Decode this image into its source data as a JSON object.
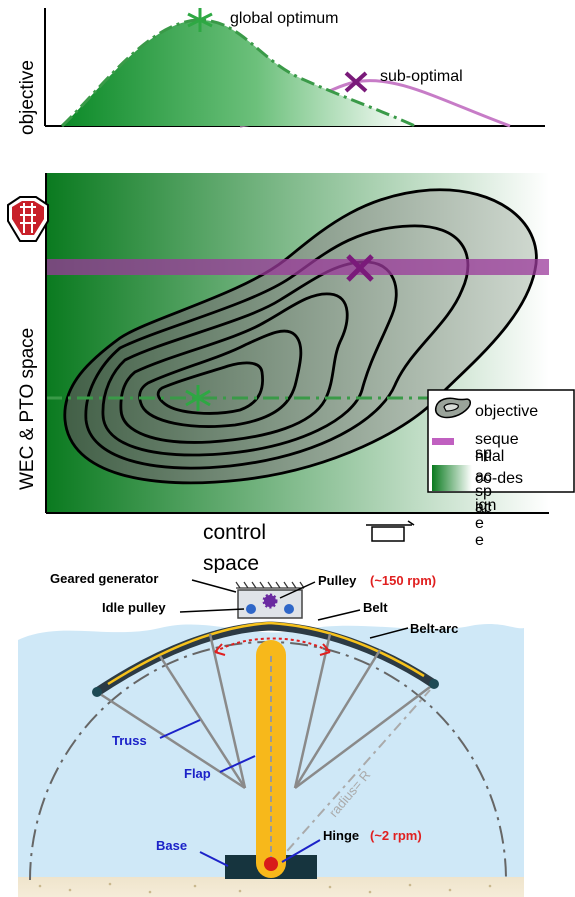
{
  "top_plot": {
    "ylabel": "objective",
    "global_label": "global optimum",
    "sub_label": "sub-optimal"
  },
  "middle_plot": {
    "ylabel": "WEC & PTO space",
    "xlabel_line1": "control",
    "xlabel_line2": "space",
    "legend": {
      "objective": "objective",
      "sequential_1": "seque",
      "sequential_2": "ntial",
      "sequential_3": "sp",
      "sequential_4": "ac",
      "sequential_5": "e",
      "codesign_1": "co-des",
      "codesign_2": "ign",
      "codesign_3": "sp",
      "codesign_4": "ac",
      "codesign_5": "e"
    }
  },
  "device": {
    "geared_generator": "Geared generator",
    "pulley": "Pulley",
    "pulley_speed": "(~150 rpm)",
    "idle_pulley": "Idle pulley",
    "belt": "Belt",
    "belt_arc": "Belt-arc",
    "truss": "Truss",
    "flap": "Flap",
    "radius": "radius= R",
    "base": "Base",
    "hinge": "Hinge",
    "hinge_speed": "(~2 rpm)"
  },
  "colors": {
    "green_dark": "#0a7a1f",
    "purple": "#8b1a8b",
    "sea": "#cfe8f7",
    "flap": "#f7b81b",
    "label_blue": "#1c22c8",
    "label_red": "#e02020"
  }
}
